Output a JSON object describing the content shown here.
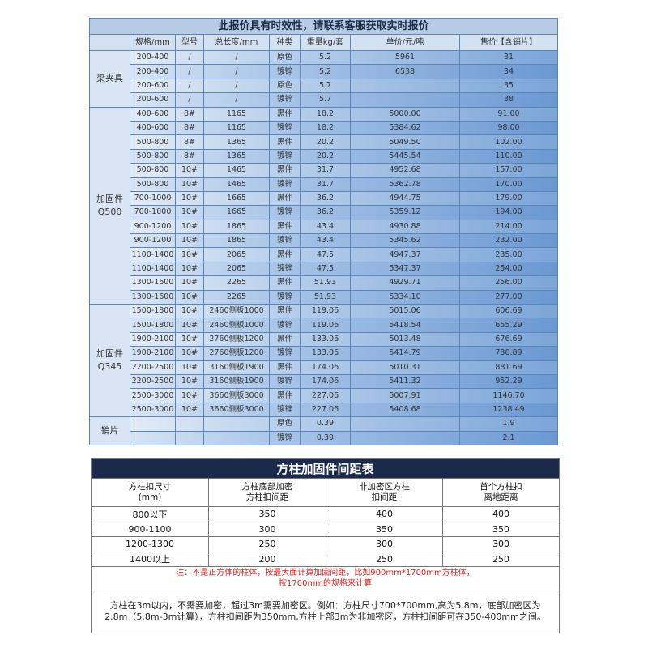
{
  "price_table": {
    "title": "此报价具有时效性，请联系客服获取实时报价",
    "header": [
      null,
      "规格/mm",
      "型号",
      "总长度/mm",
      "种类",
      "重量kg/套",
      "单价/元/吨",
      "售价【含销片】"
    ],
    "groups": [
      {
        "label": "梁夹具",
        "rows": [
          [
            "200-400",
            "/",
            "/",
            "原色",
            "5.2",
            "5961",
            "31"
          ],
          [
            "200-400",
            "/",
            "/",
            "镀锌",
            "5.2",
            "6538",
            "34"
          ],
          [
            "200-600",
            "/",
            "/",
            "原色",
            "5.7",
            null,
            "35"
          ],
          [
            "200-600",
            "/",
            "/",
            "镀锌",
            "5.7",
            null,
            "38"
          ]
        ]
      },
      {
        "label": "加固件\nQ500",
        "rows": [
          [
            "400-600",
            "8#",
            "1165",
            "黑件",
            "18.2",
            "5000.00",
            "91.00"
          ],
          [
            "400-600",
            "8#",
            "1165",
            "镀锌",
            "18.2",
            "5384.62",
            "98.00"
          ],
          [
            "500-800",
            "8#",
            "1365",
            "黑件",
            "20.2",
            "5049.50",
            "102.00"
          ],
          [
            "500-800",
            "8#",
            "1365",
            "镀锌",
            "20.2",
            "5445.54",
            "110.00"
          ],
          [
            "500-800",
            "10#",
            "1465",
            "黑件",
            "31.7",
            "4952.68",
            "157.00"
          ],
          [
            "500-800",
            "10#",
            "1465",
            "镀锌",
            "31.7",
            "5362.78",
            "170.00"
          ],
          [
            "700-1000",
            "10#",
            "1665",
            "黑件",
            "36.2",
            "4944.75",
            "179.00"
          ],
          [
            "700-1000",
            "10#",
            "1665",
            "镀锌",
            "36.2",
            "5359.12",
            "194.00"
          ],
          [
            "900-1200",
            "10#",
            "1865",
            "黑件",
            "43.4",
            "4930.88",
            "214.00"
          ],
          [
            "900-1200",
            "10#",
            "1865",
            "镀锌",
            "43.4",
            "5345.62",
            "232.00"
          ],
          [
            "1100-1400",
            "10#",
            "2065",
            "黑件",
            "47.5",
            "4947.37",
            "235.00"
          ],
          [
            "1100-1400",
            "10#",
            "2065",
            "镀锌",
            "47.5",
            "5347.37",
            "254.00"
          ],
          [
            "1300-1600",
            "10#",
            "2265",
            "黑件",
            "51.93",
            "4929.71",
            "256.00"
          ],
          [
            "1300-1600",
            "10#",
            "2265",
            "镀锌",
            "51.93",
            "5334.10",
            "277.00"
          ]
        ]
      },
      {
        "label": "加固件\nQ345",
        "rows": [
          [
            "1500-1800",
            "10#",
            "2460侧板1000",
            "黑件",
            "119.06",
            "5015.06",
            "606.69"
          ],
          [
            "1500-1800",
            "10#",
            "2460侧板1000",
            "镀锌",
            "119.06",
            "5418.54",
            "655.29"
          ],
          [
            "1900-2100",
            "10#",
            "2760侧板1200",
            "黑件",
            "133.06",
            "5013.48",
            "676.69"
          ],
          [
            "1900-2100",
            "10#",
            "2760侧板1200",
            "镀锌",
            "133.06",
            "5414.79",
            "730.89"
          ],
          [
            "2200-2500",
            "10#",
            "3160侧板1900",
            "黑件",
            "174.06",
            "5010.31",
            "881.69"
          ],
          [
            "2200-2500",
            "10#",
            "3160侧板1900",
            "镀锌",
            "174.06",
            "5411.32",
            "952.29"
          ],
          [
            "2500-3000",
            "10#",
            "3660侧板3000",
            "黑件",
            "227.06",
            "5007.91",
            "1146.70"
          ],
          [
            "2500-3000",
            "10#",
            "3660侧板3000",
            "镀锌",
            "227.06",
            "5408.68",
            "1238.49"
          ]
        ]
      },
      {
        "label": "销片",
        "rows": [
          [
            null,
            null,
            null,
            "原色",
            "0.39",
            null,
            "1.9"
          ],
          [
            null,
            null,
            null,
            "镀锌",
            "0.39",
            null,
            "2.1"
          ]
        ]
      }
    ]
  },
  "spacing_table": {
    "title": "方柱加固件间距表",
    "header": [
      "方柱扣尺寸\n(mm)",
      "方柱底部加密\n方柱扣间距",
      "非加密区方柱\n扣间距",
      "首个方柱扣\n离地距离"
    ],
    "rows": [
      [
        "800以下",
        "350",
        "400",
        "400"
      ],
      [
        "900-1100",
        "300",
        "350",
        "350"
      ],
      [
        "1200-1300",
        "250",
        "300",
        "300"
      ],
      [
        "1400以上",
        "200",
        "250",
        "250"
      ]
    ],
    "note": "注：不是正方体的柱体，按最大面计算加固间距，比如900mm*1700mm方柱体，\n按1700mm的规格来计算",
    "footer": "方柱在3m以内，不需要加密，超过3m需要加密区。例如：方柱尺寸700*700mm,高为5.8m，底部加密区为2.8m（5.8m-3m计算），方柱扣间距为350mm,方柱上部3m为非加密区，方柱扣间距可在350-400mm之间。"
  }
}
